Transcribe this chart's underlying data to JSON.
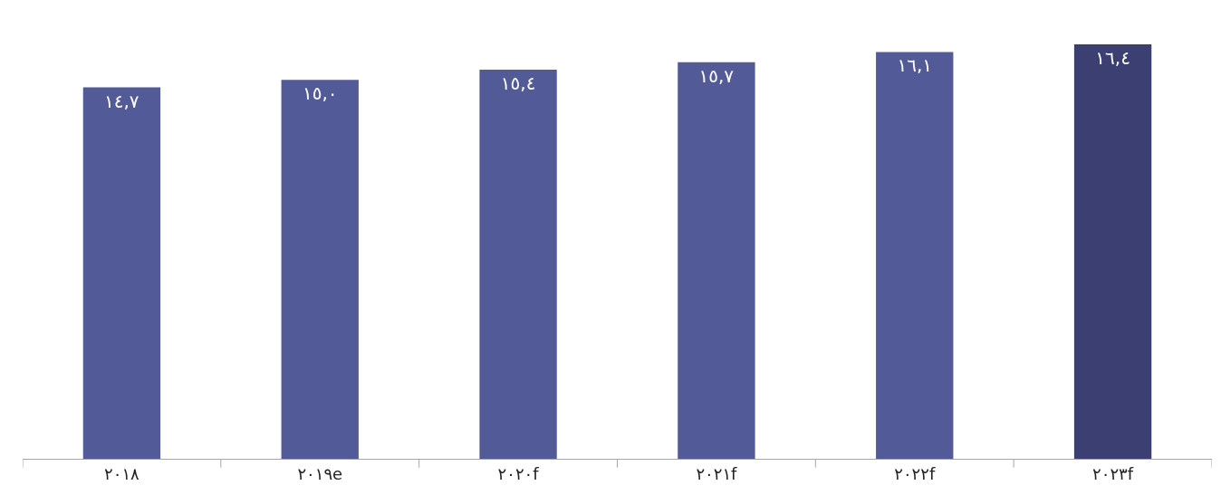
{
  "chart_data": {
    "type": "bar",
    "categories": [
      "٢٠١٨",
      "٢٠١٩e",
      "٢٠٢٠f",
      "٢٠٢١f",
      "٢٠٢٢f",
      "٢٠٢٣f"
    ],
    "values": [
      14.7,
      15.0,
      15.4,
      15.7,
      16.1,
      16.4
    ],
    "value_labels": [
      "١٤,٧",
      "١٥,٠",
      "١٥,٤",
      "١٥,٧",
      "١٦,١",
      "١٦,٤"
    ],
    "colors": [
      "#535a98",
      "#535a98",
      "#535a98",
      "#535a98",
      "#535a98",
      "#3b3f72"
    ],
    "tick_labels": "x"
  }
}
